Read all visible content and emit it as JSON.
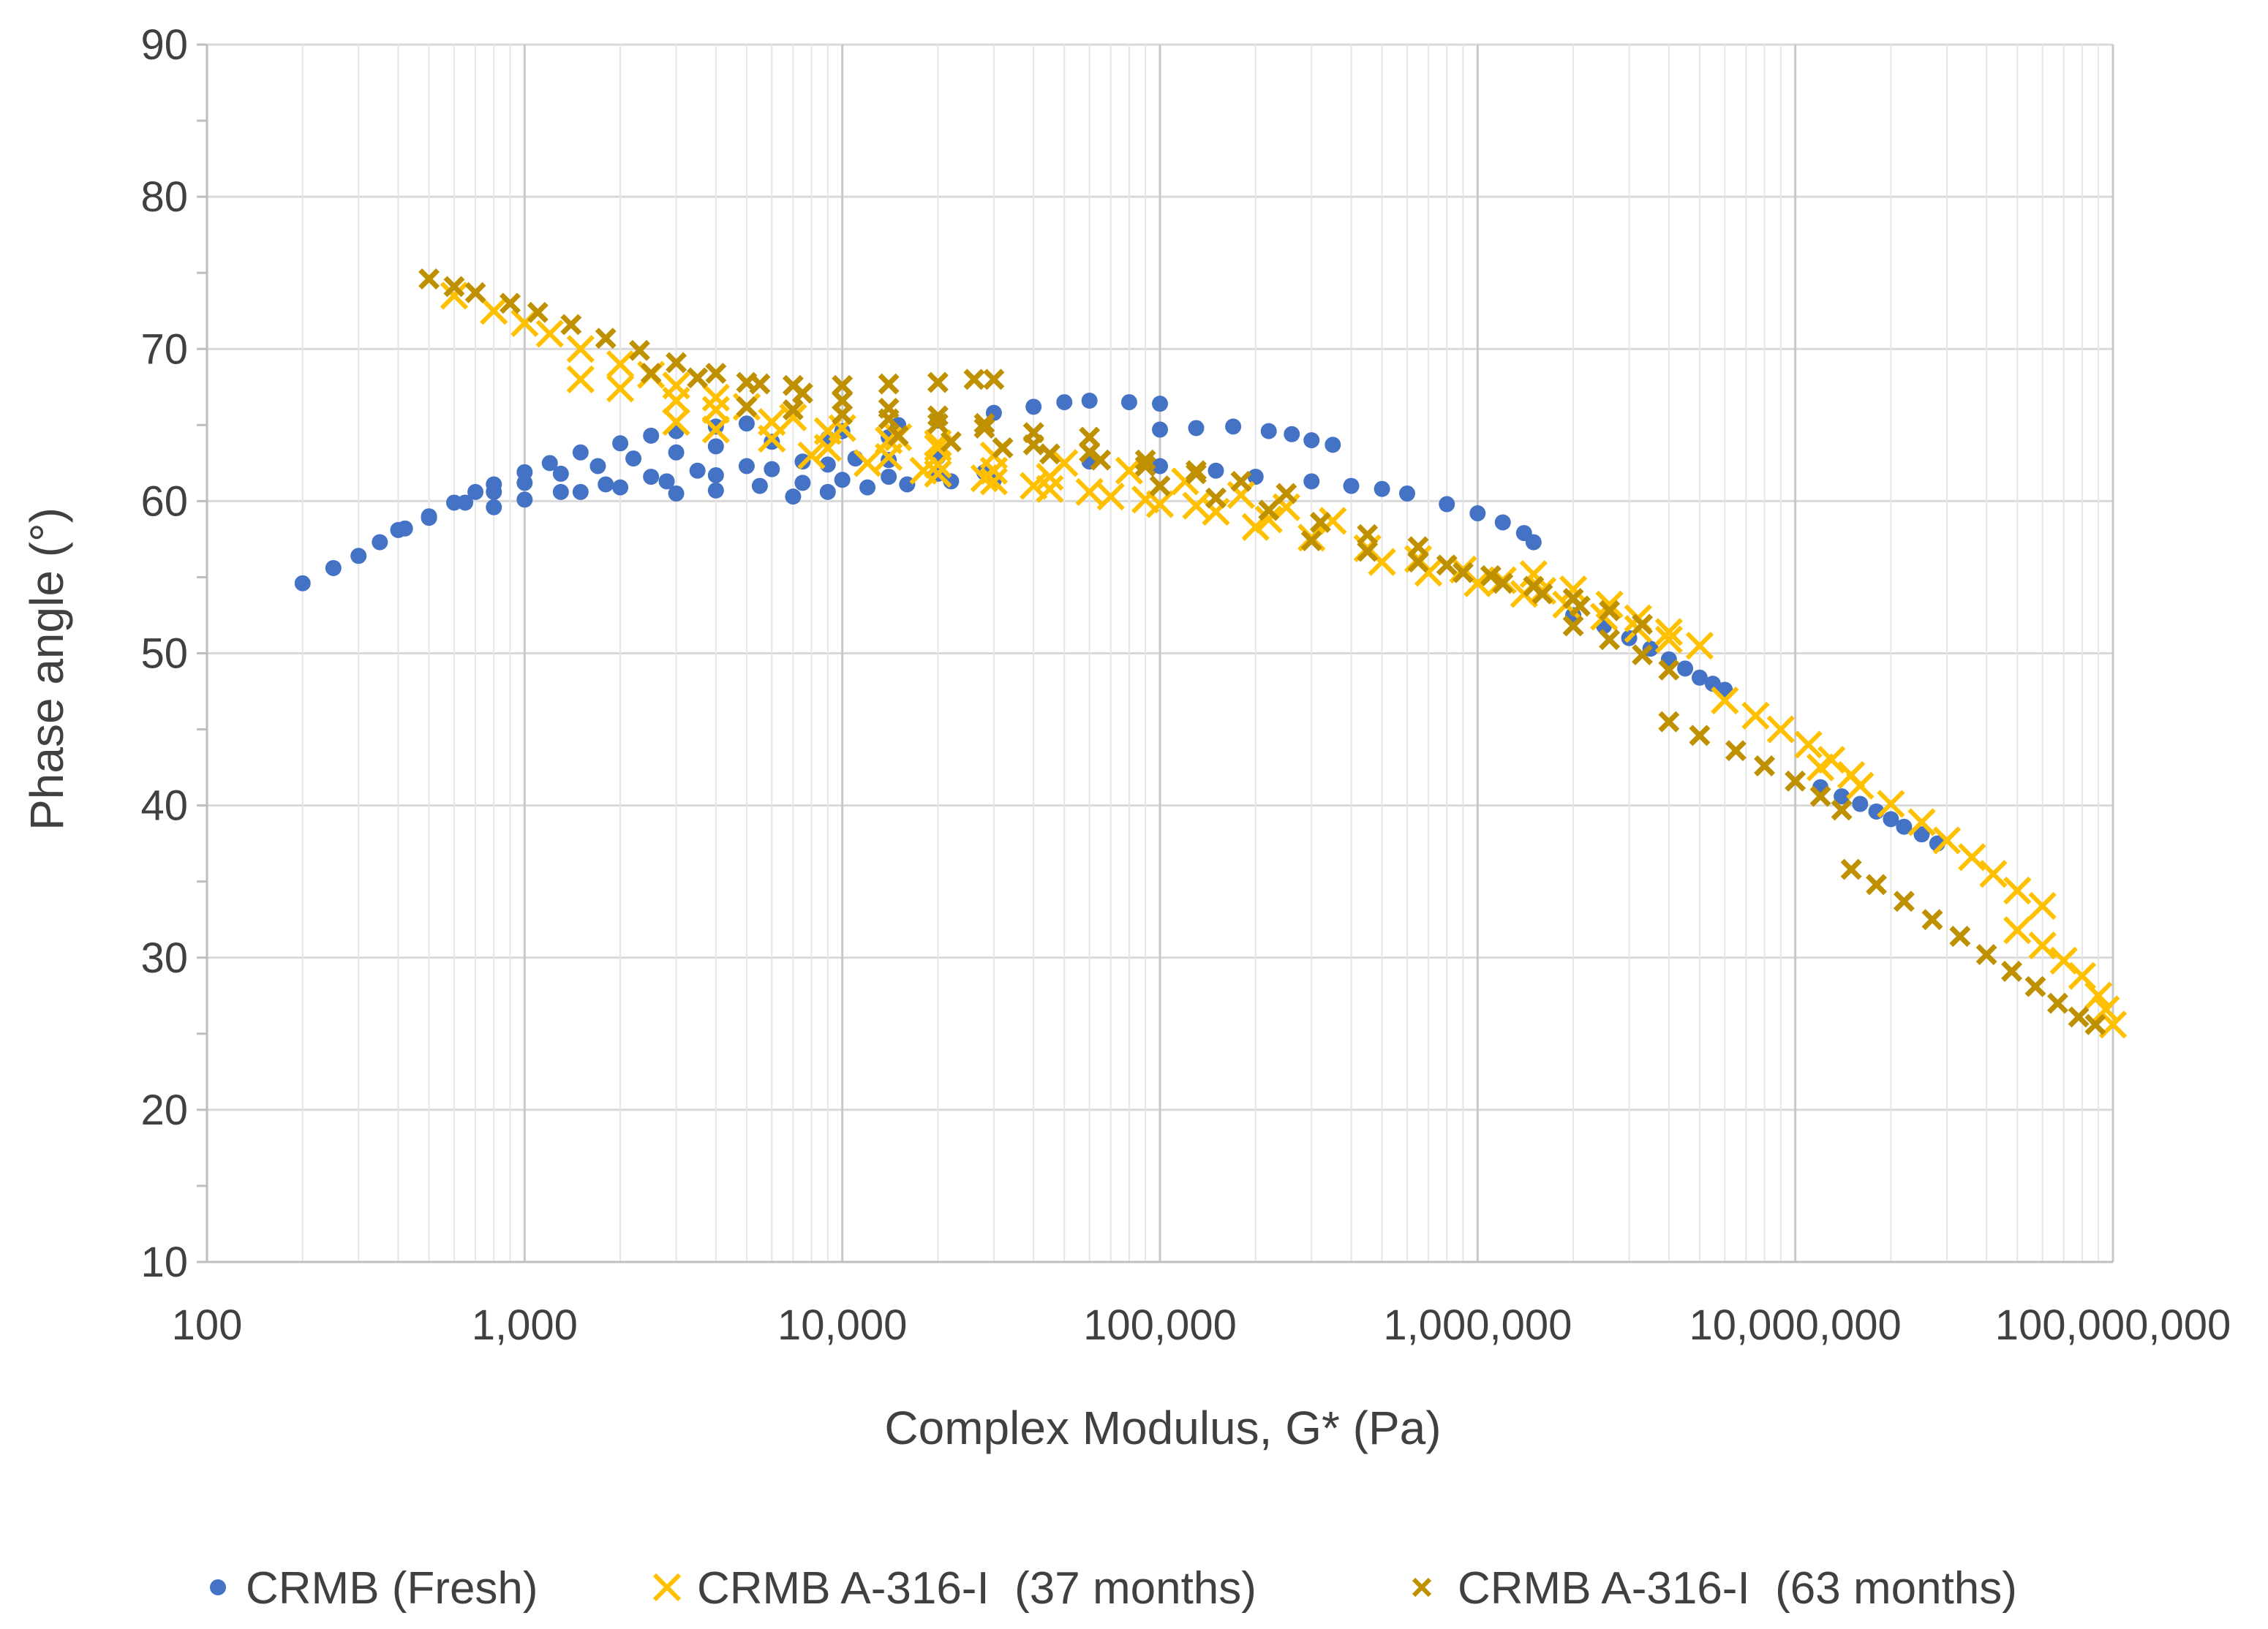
{
  "chart_data": {
    "type": "scatter",
    "title": "",
    "xlabel": "Complex Modulus, G* (Pa)",
    "ylabel": "Phase angle (°)",
    "xscale": "log",
    "xlim": [
      100,
      100000000
    ],
    "ylim": [
      10,
      90
    ],
    "grid": true,
    "legend_position": "bottom",
    "x_ticks": [
      100,
      1000,
      10000,
      100000,
      1000000,
      10000000,
      100000000
    ],
    "x_tick_labels": [
      "100",
      "1,000",
      "10,000",
      "100,000",
      "1,000,000",
      "10,000,000",
      "100,000,000"
    ],
    "y_ticks": [
      10,
      20,
      30,
      40,
      50,
      60,
      70,
      80,
      90
    ],
    "y_tick_labels": [
      "10",
      "20",
      "30",
      "40",
      "50",
      "60",
      "70",
      "80",
      "90"
    ],
    "series": [
      {
        "name": "CRMB (Fresh)",
        "marker": "dot",
        "color": "#4472C4",
        "points": [
          [
            200,
            54.6
          ],
          [
            250,
            55.6
          ],
          [
            300,
            56.4
          ],
          [
            350,
            57.3
          ],
          [
            420,
            58.2
          ],
          [
            500,
            59.0
          ],
          [
            600,
            59.9
          ],
          [
            700,
            60.6
          ],
          [
            800,
            61.1
          ],
          [
            1000,
            61.9
          ],
          [
            1200,
            62.5
          ],
          [
            1500,
            63.2
          ],
          [
            2000,
            63.8
          ],
          [
            2500,
            64.3
          ],
          [
            3000,
            64.6
          ],
          [
            4000,
            64.9
          ],
          [
            5000,
            65.1
          ],
          [
            400,
            58.1
          ],
          [
            500,
            58.9
          ],
          [
            650,
            59.9
          ],
          [
            800,
            60.6
          ],
          [
            1000,
            61.2
          ],
          [
            1300,
            61.8
          ],
          [
            1700,
            62.3
          ],
          [
            2200,
            62.8
          ],
          [
            3000,
            63.2
          ],
          [
            4000,
            63.6
          ],
          [
            6000,
            63.9
          ],
          [
            9000,
            64.1
          ],
          [
            14000,
            64.2
          ],
          [
            800,
            59.6
          ],
          [
            1000,
            60.1
          ],
          [
            1300,
            60.6
          ],
          [
            1800,
            61.1
          ],
          [
            2500,
            61.6
          ],
          [
            3500,
            62.0
          ],
          [
            5000,
            62.3
          ],
          [
            7500,
            62.6
          ],
          [
            11000,
            62.8
          ],
          [
            1500,
            60.6
          ],
          [
            2000,
            60.9
          ],
          [
            2800,
            61.3
          ],
          [
            4000,
            61.7
          ],
          [
            6000,
            62.1
          ],
          [
            9000,
            62.4
          ],
          [
            14000,
            62.7
          ],
          [
            20000,
            62.9
          ],
          [
            3000,
            60.5
          ],
          [
            4000,
            60.7
          ],
          [
            5500,
            61.0
          ],
          [
            7500,
            61.2
          ],
          [
            10000,
            61.4
          ],
          [
            14000,
            61.6
          ],
          [
            20000,
            61.8
          ],
          [
            28000,
            61.9
          ],
          [
            7000,
            60.3
          ],
          [
            9000,
            60.6
          ],
          [
            12000,
            60.9
          ],
          [
            16000,
            61.1
          ],
          [
            22000,
            61.3
          ],
          [
            30000,
            61.4
          ],
          [
            10000,
            64.6
          ],
          [
            15000,
            65.0
          ],
          [
            20000,
            65.3
          ],
          [
            30000,
            65.8
          ],
          [
            40000,
            66.2
          ],
          [
            50000,
            66.5
          ],
          [
            60000,
            66.6
          ],
          [
            80000,
            66.5
          ],
          [
            100000,
            66.4
          ],
          [
            100000,
            64.7
          ],
          [
            130000,
            64.8
          ],
          [
            170000,
            64.9
          ],
          [
            220000,
            64.6
          ],
          [
            260000,
            64.4
          ],
          [
            300000,
            64.0
          ],
          [
            350000,
            63.7
          ],
          [
            60000,
            62.6
          ],
          [
            100000,
            62.3
          ],
          [
            150000,
            62.0
          ],
          [
            200000,
            61.6
          ],
          [
            300000,
            61.3
          ],
          [
            400000,
            61.0
          ],
          [
            500000,
            60.8
          ],
          [
            600000,
            60.5
          ],
          [
            800000,
            59.8
          ],
          [
            1000000,
            59.2
          ],
          [
            1200000,
            58.6
          ],
          [
            1400000,
            57.9
          ],
          [
            1500000,
            57.3
          ],
          [
            2000000,
            52.5
          ],
          [
            2500000,
            51.8
          ],
          [
            3000000,
            51.0
          ],
          [
            3500000,
            50.3
          ],
          [
            4000000,
            49.6
          ],
          [
            4500000,
            49.0
          ],
          [
            5000000,
            48.4
          ],
          [
            5500000,
            48.0
          ],
          [
            6000000,
            47.6
          ],
          [
            12000000,
            41.2
          ],
          [
            14000000,
            40.6
          ],
          [
            16000000,
            40.1
          ],
          [
            18000000,
            39.6
          ],
          [
            20000000,
            39.1
          ],
          [
            22000000,
            38.6
          ],
          [
            25000000,
            38.1
          ],
          [
            28000000,
            37.5
          ]
        ]
      },
      {
        "name": "CRMB A-316-I  (37 months)",
        "marker": "x",
        "color": "#FFC000",
        "points": [
          [
            600,
            73.5
          ],
          [
            800,
            72.5
          ],
          [
            1000,
            71.7
          ],
          [
            1200,
            71.0
          ],
          [
            1500,
            70.0
          ],
          [
            2000,
            69.0
          ],
          [
            2500,
            68.3
          ],
          [
            3000,
            67.6
          ],
          [
            4000,
            66.8
          ],
          [
            5000,
            66.2
          ],
          [
            7000,
            65.5
          ],
          [
            10000,
            64.8
          ],
          [
            15000,
            64.2
          ],
          [
            20000,
            63.8
          ],
          [
            1500,
            68.0
          ],
          [
            2000,
            67.4
          ],
          [
            3000,
            66.6
          ],
          [
            4000,
            66.0
          ],
          [
            6000,
            65.2
          ],
          [
            9000,
            64.6
          ],
          [
            14000,
            64.0
          ],
          [
            20000,
            63.5
          ],
          [
            30000,
            63.0
          ],
          [
            3000,
            65.2
          ],
          [
            4000,
            64.7
          ],
          [
            6000,
            64.1
          ],
          [
            9000,
            63.5
          ],
          [
            14000,
            62.9
          ],
          [
            20000,
            62.4
          ],
          [
            30000,
            62.0
          ],
          [
            45000,
            61.6
          ],
          [
            8000,
            63.0
          ],
          [
            12000,
            62.5
          ],
          [
            18000,
            62.0
          ],
          [
            28000,
            61.5
          ],
          [
            40000,
            61.0
          ],
          [
            60000,
            60.6
          ],
          [
            90000,
            60.1
          ],
          [
            130000,
            59.7
          ],
          [
            20000,
            61.8
          ],
          [
            30000,
            61.3
          ],
          [
            45000,
            60.8
          ],
          [
            70000,
            60.3
          ],
          [
            100000,
            59.8
          ],
          [
            150000,
            59.3
          ],
          [
            220000,
            58.8
          ],
          [
            50000,
            62.5
          ],
          [
            80000,
            62.0
          ],
          [
            120000,
            61.3
          ],
          [
            180000,
            60.4
          ],
          [
            250000,
            59.6
          ],
          [
            350000,
            58.7
          ],
          [
            200000,
            58.3
          ],
          [
            300000,
            57.6
          ],
          [
            450000,
            56.9
          ],
          [
            650000,
            56.2
          ],
          [
            900000,
            55.5
          ],
          [
            1200000,
            54.8
          ],
          [
            1600000,
            54.1
          ],
          [
            500000,
            56.0
          ],
          [
            700000,
            55.3
          ],
          [
            1000000,
            54.6
          ],
          [
            1400000,
            53.9
          ],
          [
            1900000,
            53.2
          ],
          [
            2500000,
            52.4
          ],
          [
            3200000,
            51.6
          ],
          [
            4000000,
            50.9
          ],
          [
            1500000,
            55.2
          ],
          [
            2000000,
            54.2
          ],
          [
            2600000,
            53.2
          ],
          [
            3200000,
            52.3
          ],
          [
            4000000,
            51.4
          ],
          [
            5000000,
            50.5
          ],
          [
            6000000,
            46.9
          ],
          [
            7500000,
            45.9
          ],
          [
            9000000,
            45.0
          ],
          [
            11000000,
            44.0
          ],
          [
            13000000,
            43.0
          ],
          [
            15000000,
            42.0
          ],
          [
            12000000,
            42.5
          ],
          [
            16000000,
            41.3
          ],
          [
            20000000,
            40.1
          ],
          [
            25000000,
            38.9
          ],
          [
            30000000,
            37.7
          ],
          [
            36000000,
            36.6
          ],
          [
            42000000,
            35.5
          ],
          [
            50000000,
            34.4
          ],
          [
            60000000,
            33.4
          ],
          [
            50000000,
            31.8
          ],
          [
            60000000,
            30.8
          ],
          [
            70000000,
            29.8
          ],
          [
            80000000,
            28.8
          ],
          [
            90000000,
            27.5
          ],
          [
            95000000,
            26.6
          ],
          [
            100000000,
            25.6
          ]
        ]
      },
      {
        "name": "CRMB A-316-I  (63 months)",
        "marker": "x",
        "color": "#BF9000",
        "points": [
          [
            500,
            74.6
          ],
          [
            600,
            74.1
          ],
          [
            700,
            73.7
          ],
          [
            900,
            73.0
          ],
          [
            1100,
            72.4
          ],
          [
            1400,
            71.6
          ],
          [
            1800,
            70.7
          ],
          [
            2300,
            69.9
          ],
          [
            3000,
            69.1
          ],
          [
            4000,
            68.4
          ],
          [
            5500,
            67.7
          ],
          [
            7500,
            67.1
          ],
          [
            10000,
            66.6
          ],
          [
            14000,
            66.1
          ],
          [
            20000,
            65.6
          ],
          [
            28000,
            65.1
          ],
          [
            2500,
            68.4
          ],
          [
            3500,
            68.1
          ],
          [
            5000,
            67.8
          ],
          [
            7000,
            67.6
          ],
          [
            10000,
            67.6
          ],
          [
            14000,
            67.7
          ],
          [
            20000,
            67.8
          ],
          [
            26000,
            68.0
          ],
          [
            30000,
            68.0
          ],
          [
            5000,
            66.2
          ],
          [
            7000,
            66.0
          ],
          [
            10000,
            65.7
          ],
          [
            14000,
            65.4
          ],
          [
            20000,
            65.1
          ],
          [
            28000,
            64.8
          ],
          [
            40000,
            64.5
          ],
          [
            60000,
            64.2
          ],
          [
            15000,
            64.3
          ],
          [
            22000,
            63.9
          ],
          [
            32000,
            63.5
          ],
          [
            45000,
            63.1
          ],
          [
            65000,
            62.7
          ],
          [
            90000,
            62.3
          ],
          [
            130000,
            61.8
          ],
          [
            40000,
            63.7
          ],
          [
            60000,
            63.2
          ],
          [
            90000,
            62.7
          ],
          [
            130000,
            62.0
          ],
          [
            180000,
            61.3
          ],
          [
            250000,
            60.5
          ],
          [
            100000,
            61.0
          ],
          [
            150000,
            60.2
          ],
          [
            220000,
            59.4
          ],
          [
            320000,
            58.6
          ],
          [
            450000,
            57.8
          ],
          [
            650000,
            57.0
          ],
          [
            300000,
            57.4
          ],
          [
            450000,
            56.7
          ],
          [
            650000,
            56.0
          ],
          [
            900000,
            55.3
          ],
          [
            1200000,
            54.6
          ],
          [
            1600000,
            53.9
          ],
          [
            2100000,
            53.1
          ],
          [
            800000,
            55.8
          ],
          [
            1100000,
            55.1
          ],
          [
            1500000,
            54.4
          ],
          [
            2000000,
            53.6
          ],
          [
            2600000,
            52.8
          ],
          [
            3300000,
            51.9
          ],
          [
            2000000,
            51.8
          ],
          [
            2600000,
            50.9
          ],
          [
            3300000,
            49.9
          ],
          [
            4000000,
            48.9
          ],
          [
            4000000,
            45.5
          ],
          [
            5000000,
            44.6
          ],
          [
            6500000,
            43.6
          ],
          [
            8000000,
            42.6
          ],
          [
            10000000,
            41.6
          ],
          [
            12000000,
            40.6
          ],
          [
            14000000,
            39.7
          ],
          [
            15000000,
            35.8
          ],
          [
            18000000,
            34.8
          ],
          [
            22000000,
            33.7
          ],
          [
            27000000,
            32.5
          ],
          [
            33000000,
            31.4
          ],
          [
            40000000,
            30.2
          ],
          [
            48000000,
            29.1
          ],
          [
            57000000,
            28.1
          ],
          [
            67000000,
            27.0
          ],
          [
            78000000,
            26.1
          ],
          [
            88000000,
            25.6
          ]
        ]
      }
    ]
  }
}
